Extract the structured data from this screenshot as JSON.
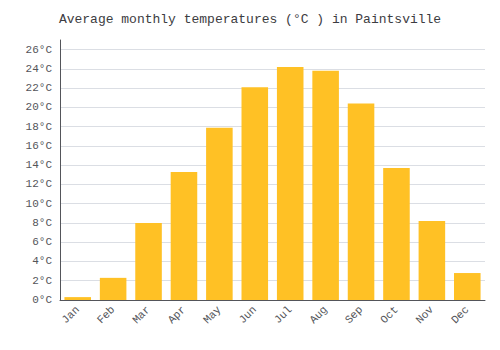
{
  "chart_data": {
    "type": "bar",
    "title": "Average monthly temperatures (°C ) in Paintsville",
    "categories": [
      "Jan",
      "Feb",
      "Mar",
      "Apr",
      "May",
      "Jun",
      "Jul",
      "Aug",
      "Sep",
      "Oct",
      "Nov",
      "Dec"
    ],
    "values": [
      0.3,
      2.3,
      8.0,
      13.3,
      17.9,
      22.1,
      24.2,
      23.8,
      20.4,
      13.7,
      8.2,
      2.8
    ],
    "color": "#FFC125",
    "ylim": [
      0,
      27
    ],
    "yticks": [
      {
        "value": 0,
        "label": "0°C"
      },
      {
        "value": 2,
        "label": "2°C"
      },
      {
        "value": 4,
        "label": "4°C"
      },
      {
        "value": 6,
        "label": "6°C"
      },
      {
        "value": 8,
        "label": "8°C"
      },
      {
        "value": 10,
        "label": "10°C"
      },
      {
        "value": 12,
        "label": "12°C"
      },
      {
        "value": 14,
        "label": "14°C"
      },
      {
        "value": 16,
        "label": "16°C"
      },
      {
        "value": 18,
        "label": "18°C"
      },
      {
        "value": 20,
        "label": "20°C"
      },
      {
        "value": 22,
        "label": "22°C"
      },
      {
        "value": 24,
        "label": "24°C"
      },
      {
        "value": 26,
        "label": "26°C"
      }
    ],
    "grid": true
  }
}
